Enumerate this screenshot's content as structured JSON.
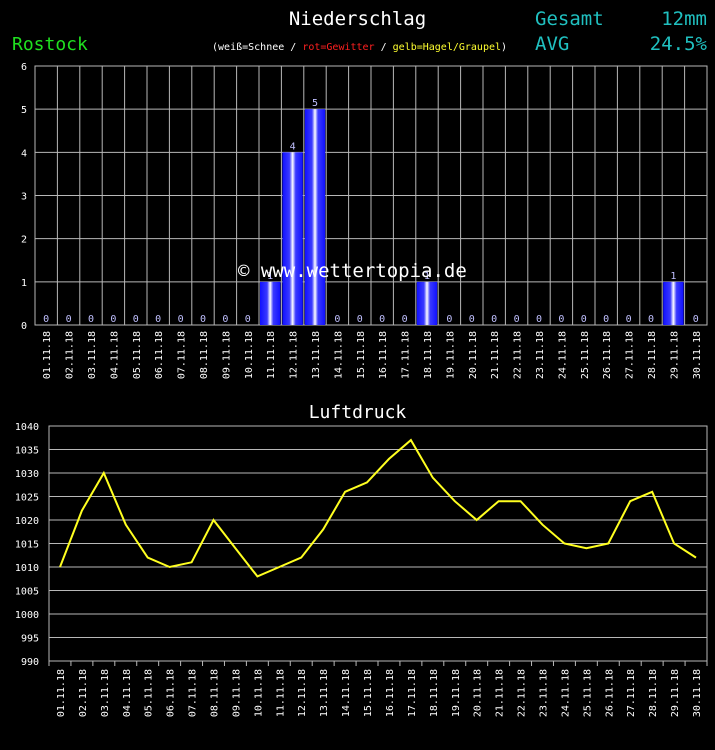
{
  "header": {
    "title": "Niederschlag",
    "station": "Rostock",
    "legend": {
      "snow": "weiß=Schnee",
      "sep1": " / ",
      "thunder": "rot=Gewitter",
      "sep2": " / ",
      "hail": "gelb=Hagel/Graupel",
      "open": "(",
      "close": ")"
    },
    "total_label": "Gesamt",
    "total_value": "12mm",
    "avg_label": "AVG",
    "avg_value": "24.5%"
  },
  "watermark": "© www.wettertopia.de",
  "colors": {
    "background": "#000000",
    "grid": "#b8b8b8",
    "bar": "#1a1aff",
    "line": "#ffff20",
    "station": "#20e020",
    "stats": "#20c0c0"
  },
  "chart_data": [
    {
      "type": "bar",
      "title": "Niederschlag",
      "unit": "mm",
      "categories": [
        "01.11.18",
        "02.11.18",
        "03.11.18",
        "04.11.18",
        "05.11.18",
        "06.11.18",
        "07.11.18",
        "08.11.18",
        "09.11.18",
        "10.11.18",
        "11.11.18",
        "12.11.18",
        "13.11.18",
        "14.11.18",
        "15.11.18",
        "16.11.18",
        "17.11.18",
        "18.11.18",
        "19.11.18",
        "20.11.18",
        "21.11.18",
        "22.11.18",
        "23.11.18",
        "24.11.18",
        "25.11.18",
        "26.11.18",
        "27.11.18",
        "28.11.18",
        "29.11.18",
        "30.11.18"
      ],
      "values": [
        0,
        0,
        0,
        0,
        0,
        0,
        0,
        0,
        0,
        0,
        1,
        4,
        5,
        0,
        0,
        0,
        0,
        1,
        0,
        0,
        0,
        0,
        0,
        0,
        0,
        0,
        0,
        0,
        1,
        0
      ],
      "ylim": [
        0,
        6
      ],
      "yticks": [
        0,
        1,
        2,
        3,
        4,
        5,
        6
      ],
      "grid": true
    },
    {
      "type": "line",
      "title": "Luftdruck",
      "categories": [
        "01.11.18",
        "02.11.18",
        "03.11.18",
        "04.11.18",
        "05.11.18",
        "06.11.18",
        "07.11.18",
        "08.11.18",
        "09.11.18",
        "10.11.18",
        "11.11.18",
        "12.11.18",
        "13.11.18",
        "14.11.18",
        "15.11.18",
        "16.11.18",
        "17.11.18",
        "18.11.18",
        "19.11.18",
        "20.11.18",
        "21.11.18",
        "22.11.18",
        "23.11.18",
        "24.11.18",
        "25.11.18",
        "26.11.18",
        "27.11.18",
        "28.11.18",
        "29.11.18",
        "30.11.18"
      ],
      "values": [
        1010,
        1022,
        1030,
        1019,
        1012,
        1010,
        1011,
        1020,
        1014,
        1008,
        1010,
        1012,
        1018,
        1026,
        1028,
        1033,
        1037,
        1029,
        1024,
        1020,
        1024,
        1024,
        1019,
        1015,
        1014,
        1015,
        1024,
        1026,
        1015,
        1012
      ],
      "ylim": [
        990,
        1040
      ],
      "yticks": [
        990,
        995,
        1000,
        1005,
        1010,
        1015,
        1020,
        1025,
        1030,
        1035,
        1040
      ],
      "grid": true
    }
  ]
}
